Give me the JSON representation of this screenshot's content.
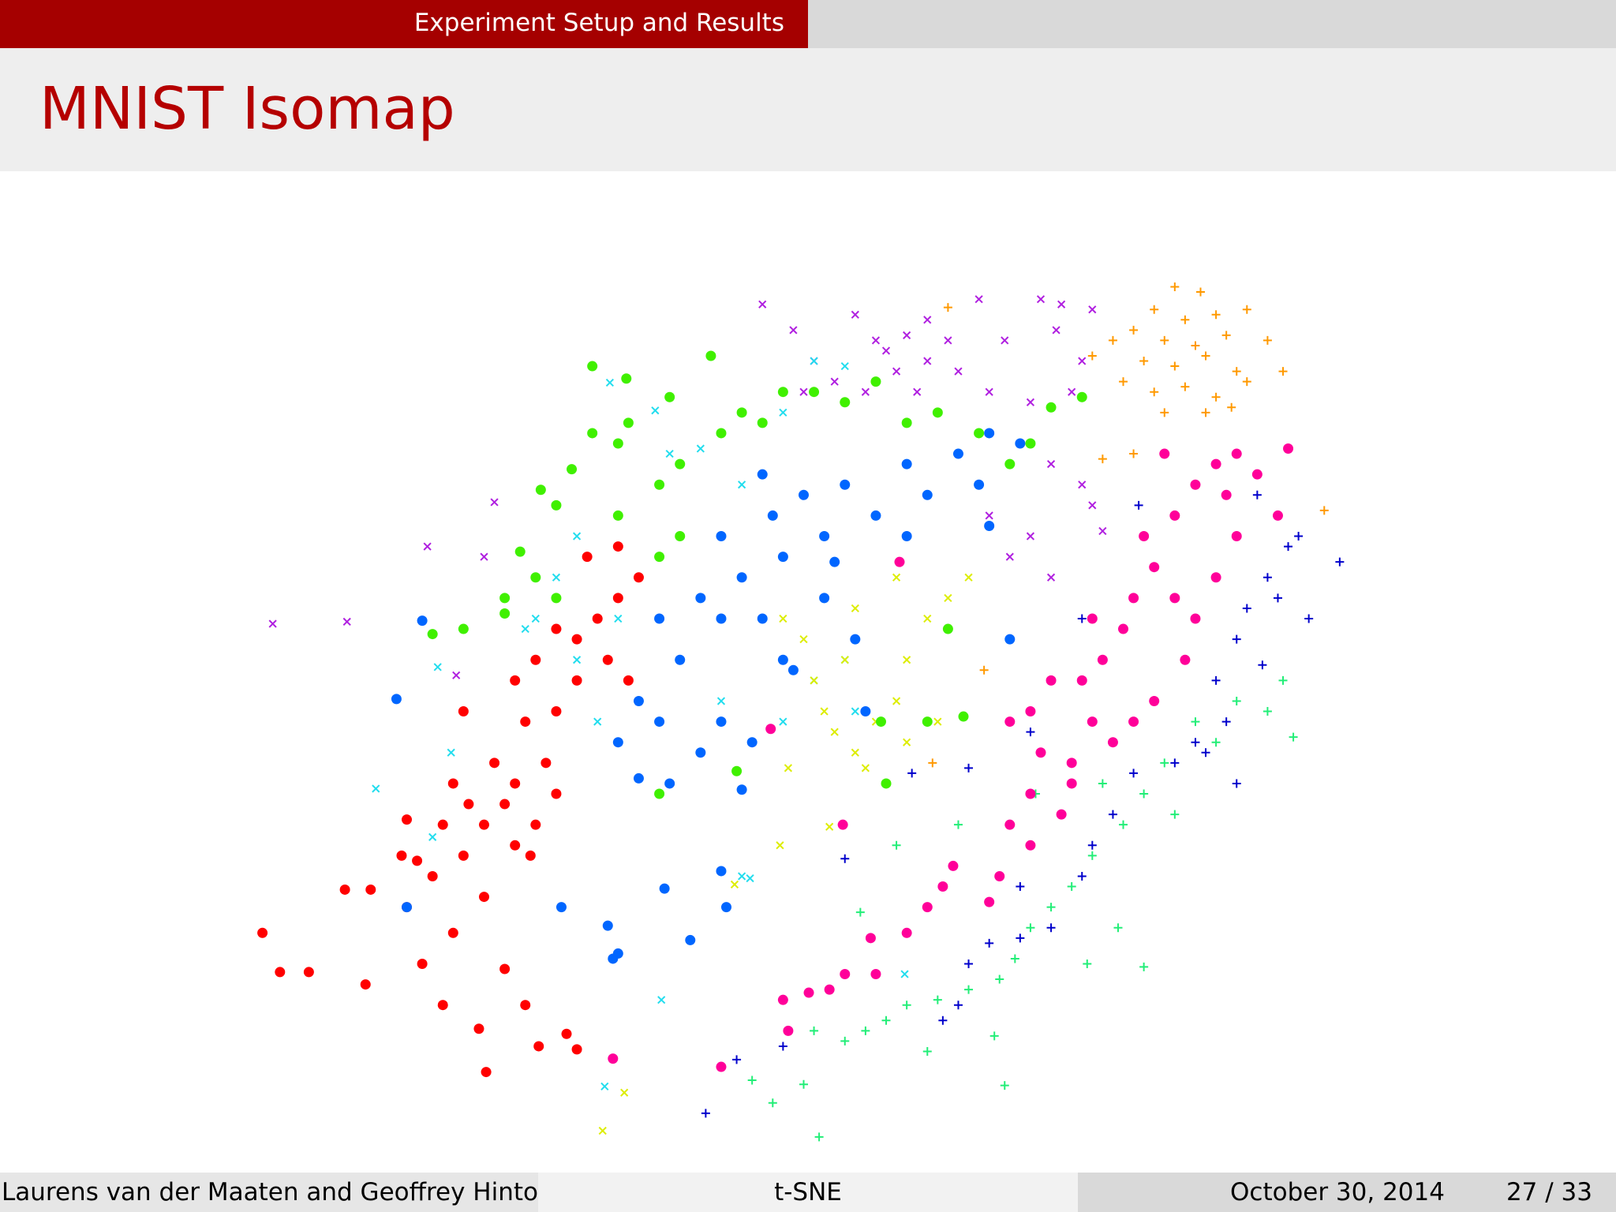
{
  "header": {
    "section": "Experiment Setup and Results"
  },
  "title": "MNIST Isomap",
  "chart_data": {
    "type": "scatter",
    "xlim": [
      240,
      1320
    ],
    "ylim": [
      1110,
      260
    ],
    "series": [
      {
        "color": "#b020e0",
        "marker": "x",
        "x": [
          740,
          770,
          790,
          830,
          850,
          880,
          900,
          920,
          950,
          975,
          1010,
          1030,
          1025,
          1060,
          1050,
          1040,
          1000,
          960,
          930,
          900,
          870,
          840,
          810,
          780,
          1020,
          1050,
          1060,
          1000,
          980,
          1020,
          960,
          1070,
          265,
          337,
          415,
          470,
          480,
          443,
          890,
          860
        ],
        "values": [
          295,
          320,
          350,
          305,
          330,
          325,
          310,
          330,
          290,
          330,
          290,
          295,
          320,
          300,
          350,
          380,
          390,
          380,
          360,
          350,
          360,
          380,
          370,
          380,
          450,
          470,
          490,
          520,
          540,
          560,
          500,
          515,
          605,
          603,
          530,
          540,
          487,
          655,
          380,
          340
        ]
      },
      {
        "color": "#22ddee",
        "marker": "x",
        "x": [
          592,
          636,
          650,
          680,
          700,
          720,
          560,
          540,
          520,
          510,
          450,
          425,
          438,
          365,
          420,
          560,
          600,
          580,
          700,
          760,
          790,
          820,
          830,
          720,
          728,
          642,
          587,
          878,
          790,
          820,
          760
        ],
        "values": [
          371,
          398,
          440,
          435,
          420,
          470,
          520,
          560,
          600,
          610,
          610,
          647,
          730,
          765,
          812,
          640,
          600,
          700,
          680,
          700,
          660,
          640,
          690,
          850,
          852,
          970,
          1054,
          945,
          350,
          355,
          400
        ]
      },
      {
        "color": "#dded00",
        "marker": "x",
        "x": [
          760,
          780,
          790,
          800,
          810,
          830,
          840,
          850,
          870,
          880,
          900,
          920,
          940,
          910,
          880,
          860,
          820,
          765,
          757,
          805,
          713,
          606,
          585,
          870,
          830
        ],
        "values": [
          600,
          620,
          660,
          690,
          710,
          730,
          745,
          700,
          680,
          640,
          600,
          580,
          560,
          700,
          720,
          760,
          640,
          745,
          820,
          802,
          858,
          1060,
          1097,
          560,
          590
        ]
      },
      {
        "color": "#ff9900",
        "marker": "plus",
        "x": [
          1140,
          1165,
          1120,
          1150,
          1180,
          1210,
          1100,
          1130,
          1160,
          1190,
          1230,
          1110,
          1140,
          1170,
          1200,
          1245,
          1090,
          1120,
          1150,
          1180,
          1210,
          1130,
          1170,
          1195,
          1080,
          1060,
          1285,
          905,
          955,
          1100,
          1070,
          920
        ],
        "values": [
          278,
          283,
          300,
          310,
          305,
          300,
          320,
          330,
          335,
          325,
          330,
          350,
          355,
          345,
          360,
          360,
          370,
          380,
          375,
          385,
          370,
          400,
          400,
          395,
          330,
          345,
          495,
          740,
          650,
          440,
          445,
          298
        ]
      },
      {
        "color": "#0000cc",
        "marker": "plus",
        "x": [
          1220,
          1240,
          1250,
          1300,
          1270,
          1230,
          1210,
          1200,
          1225,
          1180,
          1190,
          1160,
          1200,
          1170,
          1140,
          1100,
          1080,
          1060,
          1050,
          1020,
          990,
          960,
          940,
          930,
          915,
          885,
          940,
          820,
          715,
          685,
          760,
          1050,
          1105,
          1000,
          1240,
          1260,
          990
        ],
        "values": [
          480,
          500,
          530,
          545,
          600,
          560,
          590,
          620,
          645,
          660,
          700,
          720,
          760,
          730,
          740,
          750,
          790,
          820,
          850,
          900,
          910,
          915,
          935,
          975,
          990,
          750,
          745,
          833,
          1028,
          1080,
          1015,
          600,
          490,
          710,
          580,
          520,
          860
        ]
      },
      {
        "color": "#22ee77",
        "marker": "plus",
        "x": [
          1245,
          1230,
          1255,
          1200,
          1160,
          1130,
          1110,
          1090,
          1060,
          1040,
          1020,
          1000,
          985,
          970,
          940,
          910,
          880,
          860,
          840,
          820,
          790,
          750,
          795,
          730,
          780,
          900,
          965,
          975,
          1110,
          1085,
          1140,
          1180,
          835,
          870,
          930,
          1005,
          1055,
          1070
        ],
        "values": [
          660,
          690,
          715,
          680,
          700,
          740,
          770,
          800,
          830,
          860,
          880,
          900,
          930,
          950,
          960,
          970,
          975,
          990,
          1000,
          1010,
          1000,
          1070,
          1103,
          1048,
          1052,
          1020,
          1005,
          1053,
          938,
          900,
          790,
          720,
          885,
          820,
          800,
          770,
          935,
          760
        ]
      },
      {
        "color": "#40f000",
        "marker": "circle",
        "x": [
          420,
          450,
          490,
          520,
          505,
          540,
          525,
          555,
          575,
          600,
          610,
          575,
          608,
          650,
          690,
          640,
          660,
          700,
          720,
          740,
          760,
          790,
          820,
          850,
          880,
          910,
          950,
          980,
          1000,
          1020,
          1050,
          640,
          660,
          600,
          540,
          490,
          900,
          935,
          860,
          715,
          640,
          855,
          920
        ],
        "values": [
          615,
          610,
          595,
          560,
          535,
          490,
          475,
          455,
          420,
          430,
          410,
          355,
          367,
          385,
          345,
          470,
          450,
          420,
          400,
          410,
          380,
          380,
          390,
          370,
          410,
          400,
          420,
          450,
          430,
          395,
          385,
          540,
          520,
          500,
          580,
          580,
          700,
          695,
          760,
          748,
          770,
          700,
          610
        ]
      },
      {
        "color": "#ff0000",
        "marker": "circle",
        "x": [
          255,
          272,
          300,
          355,
          335,
          360,
          395,
          410,
          430,
          465,
          472,
          523,
          550,
          560,
          510,
          490,
          440,
          420,
          395,
          405,
          450,
          470,
          500,
          520,
          540,
          470,
          440,
          480,
          510,
          540,
          560,
          500,
          520,
          560,
          580,
          600,
          620,
          600,
          570,
          540,
          590,
          610,
          450,
          500,
          530,
          430,
          455,
          490,
          515,
          390
        ],
        "values": [
          905,
          943,
          943,
          955,
          863,
          863,
          880,
          935,
          975,
          998,
          1040,
          1015,
          1003,
          1018,
          975,
          940,
          905,
          850,
          795,
          835,
          830,
          870,
          820,
          800,
          770,
          800,
          760,
          740,
          700,
          690,
          660,
          660,
          640,
          620,
          600,
          580,
          560,
          530,
          540,
          610,
          640,
          660,
          690,
          760,
          740,
          800,
          780,
          780,
          830,
          830
        ]
      },
      {
        "color": "#0066ff",
        "marker": "circle",
        "x": [
          410,
          385,
          395,
          545,
          590,
          600,
          595,
          645,
          670,
          700,
          705,
          720,
          650,
          620,
          600,
          640,
          620,
          660,
          700,
          680,
          730,
          760,
          740,
          700,
          720,
          760,
          800,
          750,
          780,
          820,
          850,
          880,
          900,
          930,
          960,
          990,
          950,
          880,
          800,
          680,
          640,
          770,
          830,
          810,
          700,
          740,
          960,
          980,
          840
        ],
        "values": [
          602,
          678,
          880,
          880,
          898,
          925,
          930,
          862,
          912,
          845,
          880,
          766,
          760,
          755,
          720,
          700,
          680,
          640,
          700,
          730,
          720,
          640,
          600,
          600,
          560,
          540,
          520,
          500,
          480,
          470,
          500,
          450,
          480,
          440,
          420,
          430,
          470,
          520,
          580,
          580,
          600,
          650,
          620,
          545,
          520,
          460,
          510,
          620,
          690
        ]
      },
      {
        "color": "#ff0099",
        "marker": "circle",
        "x": [
          700,
          765,
          760,
          785,
          805,
          820,
          850,
          845,
          880,
          900,
          915,
          925,
          960,
          970,
          980,
          1000,
          1010,
          1040,
          1060,
          1050,
          1070,
          1090,
          1100,
          1120,
          1110,
          1140,
          1160,
          1180,
          1200,
          1220,
          1250,
          1240,
          1200,
          1180,
          1160,
          1150,
          1120,
          1100,
          1080,
          1040,
          1030,
          1000,
          980,
          1000,
          1060,
          1140,
          1190,
          1130,
          873,
          818,
          748,
          595,
          1020
        ],
        "values": [
          1035,
          1000,
          970,
          963,
          960,
          945,
          945,
          910,
          905,
          880,
          860,
          840,
          875,
          850,
          800,
          770,
          730,
          740,
          700,
          660,
          640,
          610,
          580,
          550,
          520,
          500,
          470,
          450,
          440,
          460,
          435,
          500,
          520,
          560,
          600,
          640,
          680,
          700,
          720,
          760,
          790,
          820,
          700,
          690,
          600,
          580,
          480,
          440,
          545,
          800,
          707,
          1027,
          660
        ]
      }
    ]
  },
  "footer": {
    "authors": "Laurens van der Maaten and Geoffrey Hinton",
    "short_title": "t-SNE",
    "date": "October 30, 2014",
    "page": "27 / 33"
  }
}
